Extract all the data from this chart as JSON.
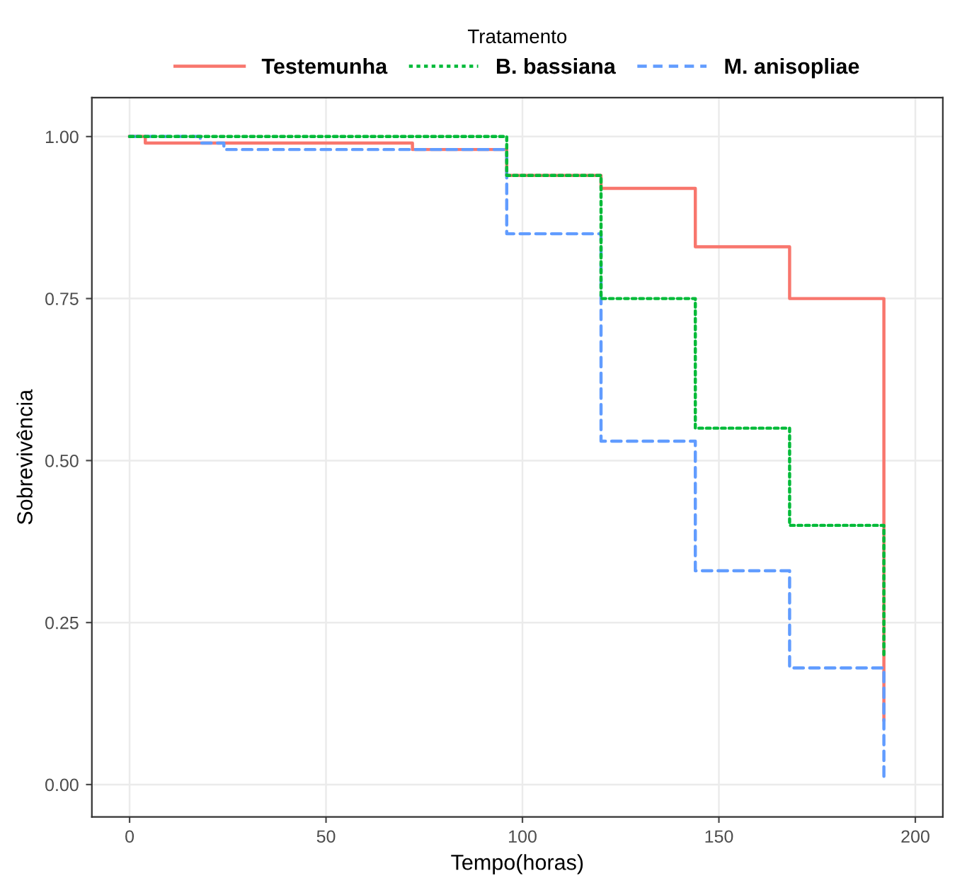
{
  "chart_data": {
    "type": "step",
    "xlabel": "Tempo(horas)",
    "ylabel": "Sobrevivência",
    "legend_title": "Tratamento",
    "legend": "top",
    "xlim": [
      -9.6,
      207
    ],
    "ylim": [
      -0.05,
      1.06
    ],
    "xticks": [
      0,
      50,
      100,
      150,
      200
    ],
    "yticks": [
      {
        "value": 0,
        "label": "0.00"
      },
      {
        "value": 0.25,
        "label": "0.25"
      },
      {
        "value": 0.5,
        "label": "0.50"
      },
      {
        "value": 0.75,
        "label": "0.75"
      },
      {
        "value": 1,
        "label": "1.00"
      }
    ],
    "grid": true,
    "series": [
      {
        "name": "Testemunha",
        "color": "#f8766d",
        "line_style": "solid",
        "x": [
          0,
          4,
          72,
          96,
          120,
          144,
          168,
          192
        ],
        "values": [
          1.0,
          0.99,
          0.98,
          0.94,
          0.92,
          0.83,
          0.75,
          0.1
        ]
      },
      {
        "name": "B. bassiana",
        "color": "#00ba38",
        "line_style": "dotted",
        "x": [
          0,
          96,
          120,
          144,
          168,
          192
        ],
        "values": [
          1.0,
          0.94,
          0.75,
          0.55,
          0.4,
          0.2
        ]
      },
      {
        "name": "M. anisopliae",
        "color": "#619cff",
        "line_style": "dashed",
        "x": [
          0,
          18,
          24,
          96,
          120,
          144,
          168,
          192
        ],
        "values": [
          1.0,
          0.99,
          0.98,
          0.85,
          0.53,
          0.33,
          0.18,
          0.01
        ]
      }
    ]
  }
}
